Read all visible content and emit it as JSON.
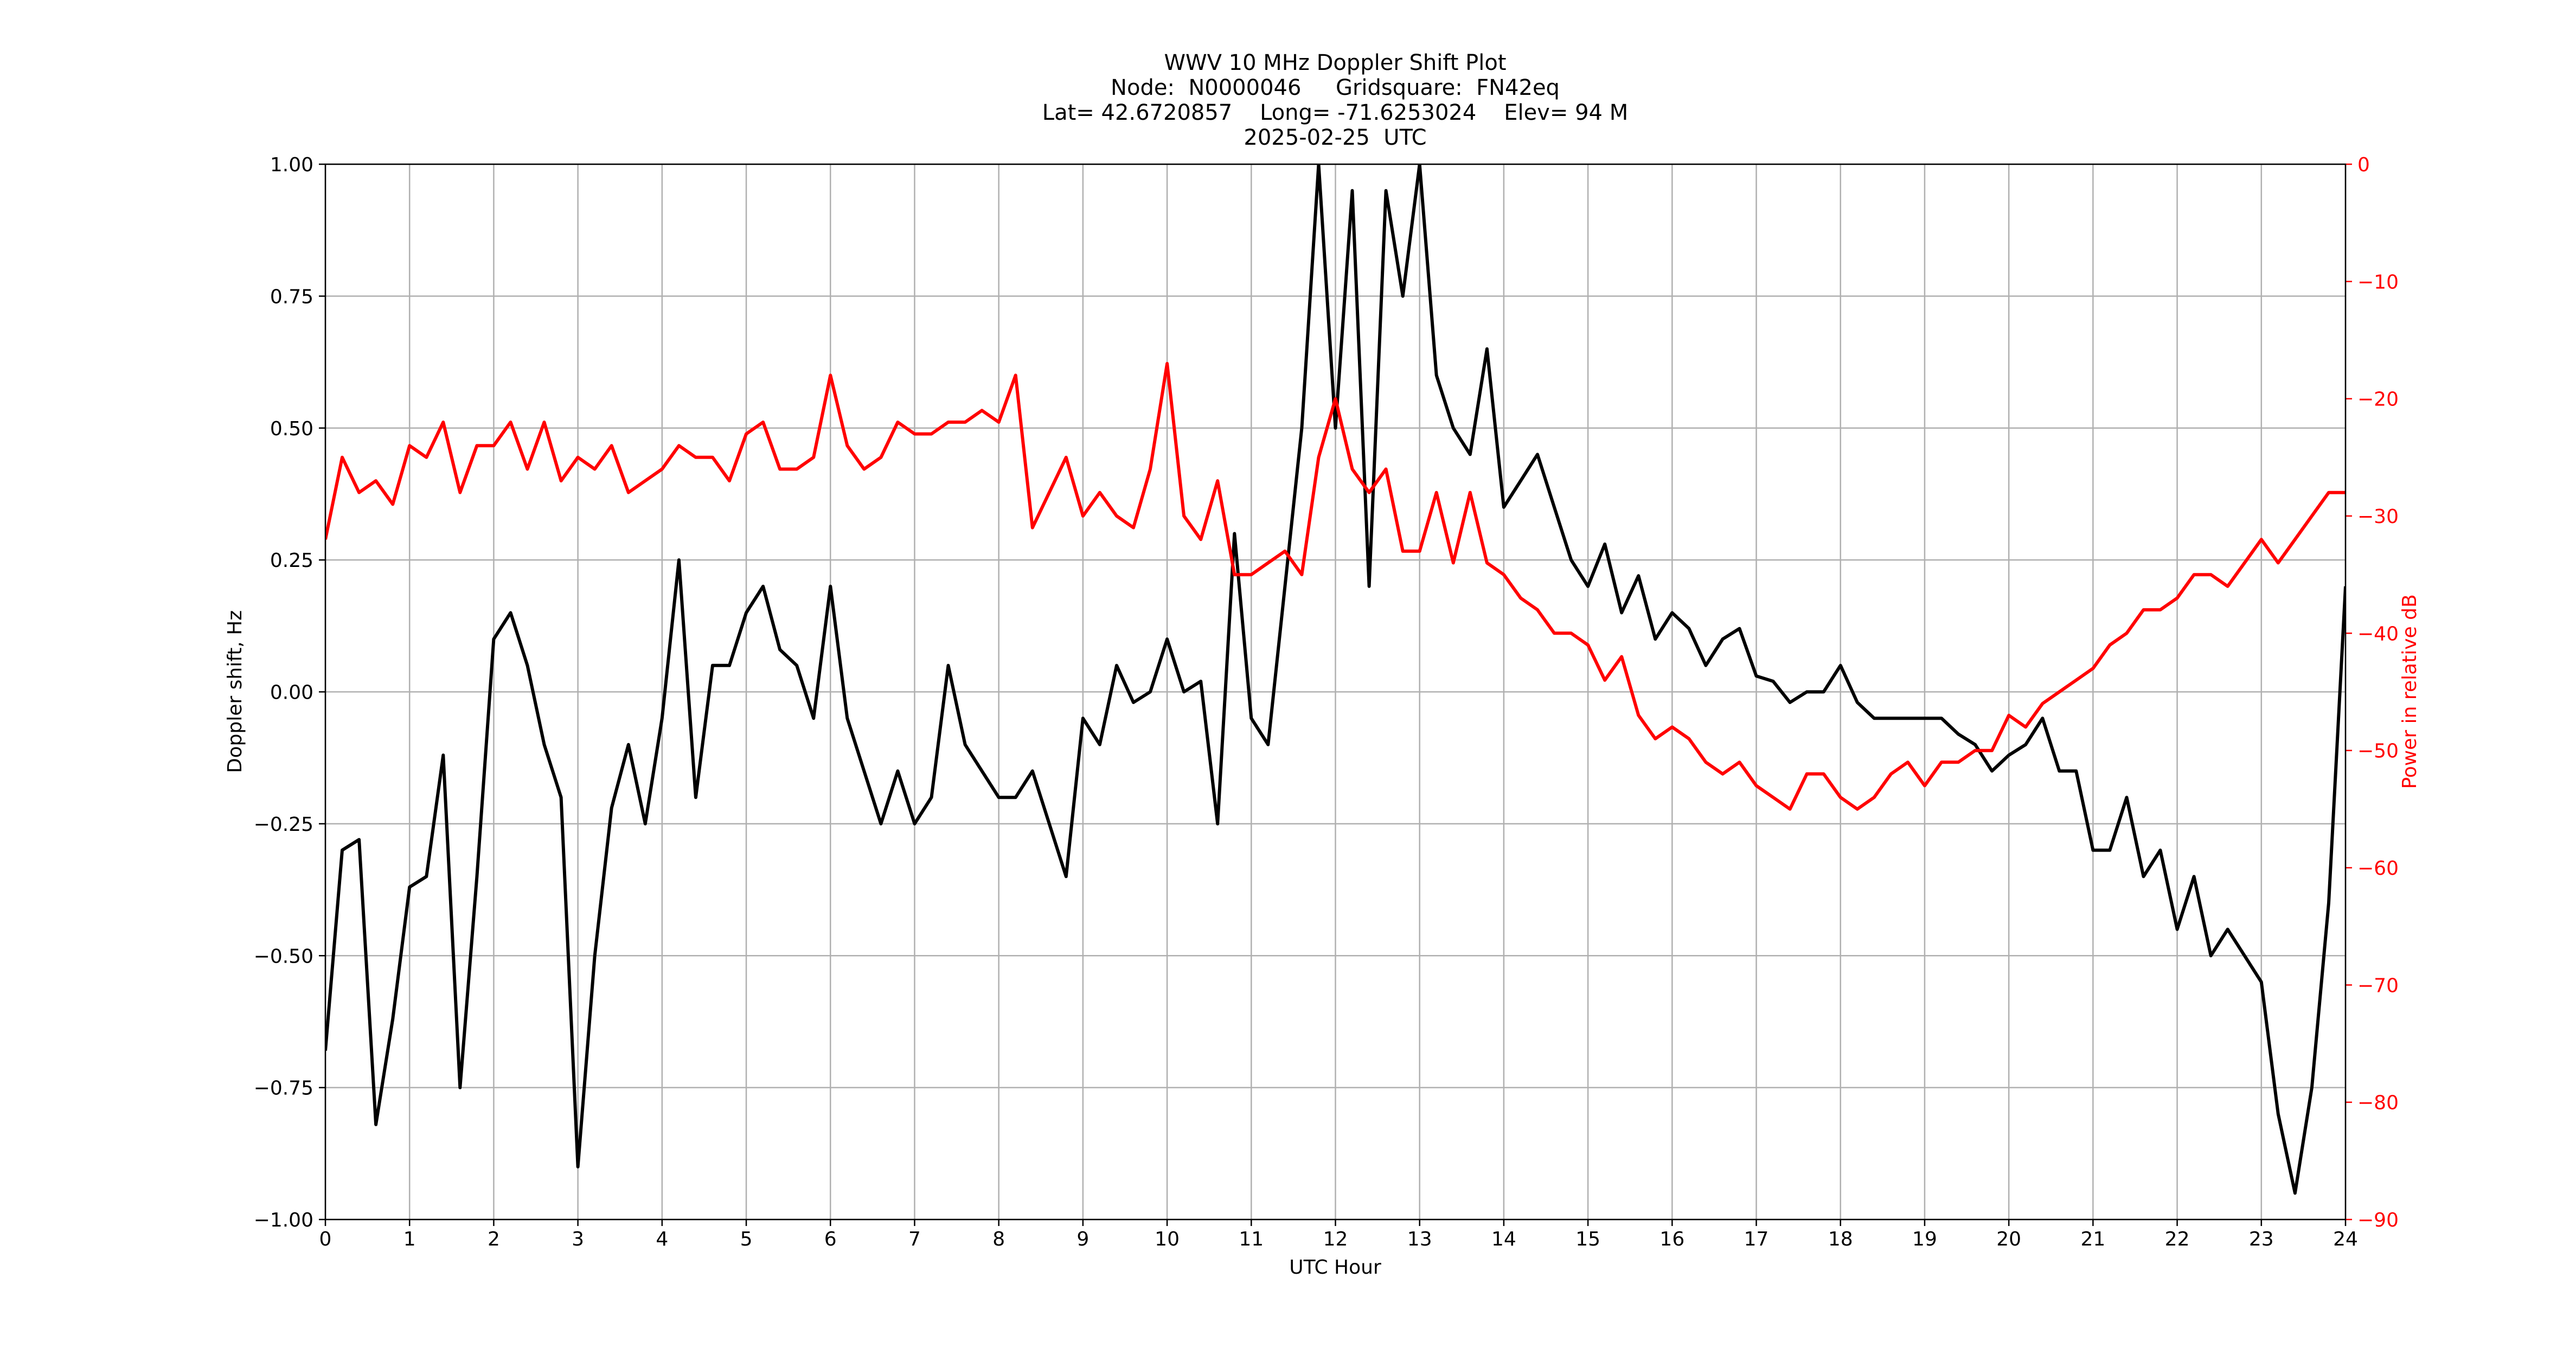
{
  "chart_data": {
    "type": "line",
    "title": "WWV 10 MHz Doppler Shift Plot",
    "subtitle_lines": [
      "Node:  N0000046     Gridsquare:  FN42eq",
      "Lat= 42.6720857    Long= -71.6253024    Elev= 94 M",
      "2025-02-25  UTC"
    ],
    "xlabel": "UTC Hour",
    "ylabel": "Doppler shift, Hz",
    "y2label": "Power in relative dB",
    "x": [
      0,
      0.2,
      0.4,
      0.6,
      0.8,
      1,
      1.2,
      1.4,
      1.6,
      1.8,
      2,
      2.2,
      2.4,
      2.6,
      2.8,
      3,
      3.2,
      3.4,
      3.6,
      3.8,
      4,
      4.2,
      4.4,
      4.6,
      4.8,
      5,
      5.2,
      5.4,
      5.6,
      5.8,
      6,
      6.2,
      6.4,
      6.6,
      6.8,
      7,
      7.2,
      7.4,
      7.6,
      7.8,
      8,
      8.2,
      8.4,
      8.6,
      8.8,
      9,
      9.2,
      9.4,
      9.6,
      9.8,
      10,
      10.2,
      10.4,
      10.6,
      10.8,
      11,
      11.2,
      11.4,
      11.6,
      11.8,
      12,
      12.2,
      12.4,
      12.6,
      12.8,
      13,
      13.2,
      13.4,
      13.6,
      13.8,
      14,
      14.2,
      14.4,
      14.6,
      14.8,
      15,
      15.2,
      15.4,
      15.6,
      15.8,
      16,
      16.2,
      16.4,
      16.6,
      16.8,
      17,
      17.2,
      17.4,
      17.6,
      17.8,
      18,
      18.2,
      18.4,
      18.6,
      18.8,
      19,
      19.2,
      19.4,
      19.6,
      19.8,
      20,
      20.2,
      20.4,
      20.6,
      20.8,
      21,
      21.2,
      21.4,
      21.6,
      21.8,
      22,
      22.2,
      22.4,
      22.6,
      22.8,
      23,
      23.2,
      23.4,
      23.6,
      23.8,
      24
    ],
    "series": [
      {
        "name": "Doppler shift",
        "color": "#000000",
        "axis": "y",
        "values": [
          -0.68,
          -0.3,
          -0.28,
          -0.82,
          -0.62,
          -0.37,
          -0.35,
          -0.12,
          -0.75,
          -0.35,
          0.1,
          0.15,
          0.05,
          -0.1,
          -0.2,
          -0.9,
          -0.5,
          -0.22,
          -0.1,
          -0.25,
          -0.05,
          0.25,
          -0.2,
          0.05,
          0.05,
          0.15,
          0.2,
          0.08,
          0.05,
          -0.05,
          0.2,
          -0.05,
          -0.15,
          -0.25,
          -0.15,
          -0.25,
          -0.2,
          0.05,
          -0.1,
          -0.15,
          -0.2,
          -0.2,
          -0.15,
          -0.25,
          -0.35,
          -0.05,
          -0.1,
          0.05,
          -0.02,
          0,
          0.1,
          0,
          0.02,
          -0.25,
          0.3,
          -0.05,
          -0.1,
          0.2,
          0.5,
          1,
          0.5,
          0.95,
          0.2,
          0.95,
          0.75,
          1,
          0.6,
          0.5,
          0.45,
          0.65,
          0.35,
          0.4,
          0.45,
          0.35,
          0.25,
          0.2,
          0.28,
          0.15,
          0.22,
          0.1,
          0.15,
          0.12,
          0.05,
          0.1,
          0.12,
          0.03,
          0.02,
          -0.02,
          0,
          0,
          0.05,
          -0.02,
          -0.05,
          -0.05,
          -0.05,
          -0.05,
          -0.05,
          -0.08,
          -0.1,
          -0.15,
          -0.12,
          -0.1,
          -0.05,
          -0.15,
          -0.15,
          -0.3,
          -0.3,
          -0.2,
          -0.35,
          -0.3,
          -0.45,
          -0.35,
          -0.5,
          -0.45,
          -0.5,
          -0.55,
          -0.8,
          -0.95,
          -0.75,
          -0.4,
          0.2
        ]
      },
      {
        "name": "Power",
        "color": "#ff0000",
        "axis": "y2",
        "values": [
          -32,
          -25,
          -28,
          -27,
          -29,
          -24,
          -25,
          -22,
          -28,
          -24,
          -24,
          -22,
          -26,
          -22,
          -27,
          -25,
          -26,
          -24,
          -28,
          -27,
          -26,
          -24,
          -25,
          -25,
          -27,
          -23,
          -22,
          -26,
          -26,
          -25,
          -18,
          -24,
          -26,
          -25,
          -22,
          -23,
          -23,
          -22,
          -22,
          -21,
          -22,
          -18,
          -31,
          -28,
          -25,
          -30,
          -28,
          -30,
          -31,
          -26,
          -17,
          -30,
          -32,
          -27,
          -35,
          -35,
          -34,
          -33,
          -35,
          -25,
          -20,
          -26,
          -28,
          -26,
          -33,
          -33,
          -28,
          -34,
          -28,
          -34,
          -35,
          -37,
          -38,
          -40,
          -40,
          -41,
          -44,
          -42,
          -47,
          -49,
          -48,
          -49,
          -51,
          -52,
          -51,
          -53,
          -54,
          -55,
          -52,
          -52,
          -54,
          -55,
          -54,
          -52,
          -51,
          -53,
          -51,
          -51,
          -50,
          -50,
          -47,
          -48,
          -46,
          -45,
          -44,
          -43,
          -41,
          -40,
          -38,
          -38,
          -37,
          -35,
          -35,
          -36,
          -34,
          -32,
          -34,
          -32,
          -30,
          -28,
          -28
        ]
      }
    ],
    "xlim": [
      0,
      24
    ],
    "xticks": [
      0,
      1,
      2,
      3,
      4,
      5,
      6,
      7,
      8,
      9,
      10,
      11,
      12,
      13,
      14,
      15,
      16,
      17,
      18,
      19,
      20,
      21,
      22,
      23,
      24
    ],
    "ylim": [
      -1,
      1
    ],
    "yticks": [
      {
        "value": -1,
        "label": "−1.00"
      },
      {
        "value": -0.75,
        "label": "−0.75"
      },
      {
        "value": -0.5,
        "label": "−0.50"
      },
      {
        "value": -0.25,
        "label": "−0.25"
      },
      {
        "value": 0,
        "label": "0.00"
      },
      {
        "value": 0.25,
        "label": "0.25"
      },
      {
        "value": 0.5,
        "label": "0.50"
      },
      {
        "value": 0.75,
        "label": "0.75"
      },
      {
        "value": 1,
        "label": "1.00"
      }
    ],
    "y2lim": [
      -90,
      0
    ],
    "y2ticks": [
      0,
      {
        "value": -10,
        "label": "−10"
      },
      {
        "value": -20,
        "label": "−20"
      },
      {
        "value": -30,
        "label": "−30"
      },
      {
        "value": -40,
        "label": "−40"
      },
      {
        "value": -50,
        "label": "−50"
      },
      {
        "value": -60,
        "label": "−60"
      },
      {
        "value": -70,
        "label": "−70"
      },
      {
        "value": -80,
        "label": "−80"
      },
      {
        "value": -90,
        "label": "−90"
      }
    ],
    "y2color": "#ff0000",
    "grid": true
  }
}
